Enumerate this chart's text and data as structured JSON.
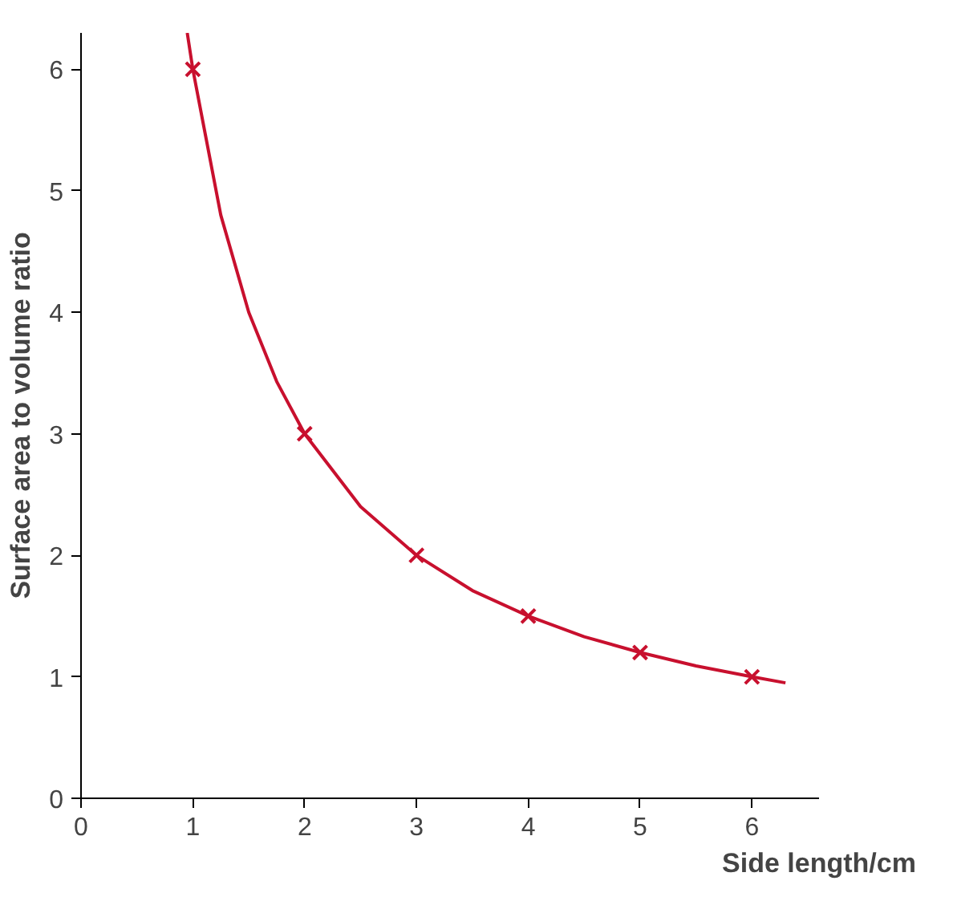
{
  "chart_data": {
    "type": "line",
    "xlabel": "Side length/cm",
    "ylabel": "Surface area to volume ratio",
    "xlim": [
      0,
      6.6
    ],
    "ylim": [
      0,
      6.3
    ],
    "xticks": [
      0,
      1,
      2,
      3,
      4,
      5,
      6
    ],
    "yticks": [
      0,
      1,
      2,
      3,
      4,
      5,
      6
    ],
    "series": [
      {
        "color": "#c8102e",
        "marker": "none",
        "x": [
          0.95,
          1,
          1.25,
          1.5,
          1.75,
          2,
          2.5,
          3,
          3.5,
          4,
          4.5,
          5,
          5.5,
          6,
          6.3
        ],
        "values": [
          6.3,
          6,
          4.8,
          4,
          3.43,
          3,
          2.4,
          2,
          1.71,
          1.5,
          1.33,
          1.2,
          1.09,
          1,
          0.95
        ]
      },
      {
        "type": "scatter",
        "color": "#c8102e",
        "marker": "cross",
        "x": [
          1,
          2,
          3,
          4,
          5,
          6
        ],
        "values": [
          6,
          3,
          2,
          1.5,
          1.2,
          1
        ]
      }
    ]
  }
}
